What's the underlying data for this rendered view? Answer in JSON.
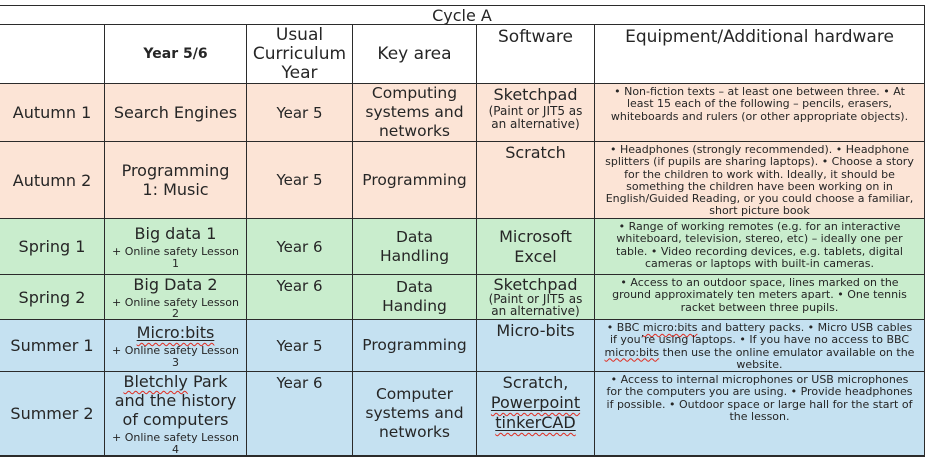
{
  "table": {
    "title": "Cycle A",
    "headers": {
      "term": "",
      "topic": "Year 5/6",
      "usual_year": [
        "Usual",
        "Curriculum",
        "Year"
      ],
      "key_area": "Key area",
      "software": "Software",
      "equipment": "Equipment/Additional hardware"
    },
    "rows": [
      {
        "term": "Autumn 1",
        "topic": [
          {
            "t": "Search Engines"
          }
        ],
        "year": "Year 5",
        "key_area": [
          "Computing",
          "systems and",
          "networks"
        ],
        "software": [
          {
            "t": "Sketchpad"
          }
        ],
        "software_sub": [
          "(Paint or JIT5 as",
          "an alternative)"
        ],
        "equipment": [
          {
            "t": "• Non-fiction texts – at least one between three. • At\nleast 15 each of the following – pencils, erasers,\nwhiteboards and rulers (or other appropriate objects)."
          }
        ]
      },
      {
        "term": "Autumn 2",
        "topic": [
          {
            "t": "Programming\n1: Music"
          }
        ],
        "year": "Year 5",
        "key_area": [
          "Programming"
        ],
        "software": [
          {
            "t": "Scratch"
          }
        ],
        "software_sub": [],
        "equipment": [
          {
            "t": "• Headphones (strongly recommended). • Headphone\nsplitters (if pupils are sharing laptops). • Choose a story\nfor the children to work with. Ideally, it should be\nsomething the children have been working on in\nEnglish/Guided Reading, or you could choose a familiar,\nshort picture book"
          }
        ]
      },
      {
        "term": "Spring 1",
        "topic": [
          {
            "t": "Big data 1"
          }
        ],
        "topic_sub": [
          "+ Online safety Lesson",
          "1"
        ],
        "year": "Year 6",
        "key_area": [
          "Data",
          "Handling"
        ],
        "software": [
          {
            "t": "Microsoft\nExcel"
          }
        ],
        "software_sub": [],
        "equipment": [
          {
            "t": "• Range of working remotes (e.g. for an interactive\nwhiteboard, television, stereo, etc) – ideally one per\ntable. • Video recording devices, e.g. tablets, digital\ncameras or laptops with built-in cameras."
          }
        ]
      },
      {
        "term": "Spring 2",
        "topic": [
          {
            "t": "Big Data 2"
          }
        ],
        "topic_sub": [
          "+ Online safety Lesson",
          "2"
        ],
        "year": "Year 6",
        "key_area": [
          "Data",
          "Handing"
        ],
        "software": [
          {
            "t": "Sketchpad"
          }
        ],
        "software_sub": [
          "(Paint or JIT5 as",
          "an alternative)"
        ],
        "equipment": [
          {
            "t": "• Access to an outdoor space, lines marked on the\nground approximately ten meters apart. • One tennis\nracket between three pupils."
          }
        ]
      },
      {
        "term": "Summer 1",
        "topic": [
          {
            "t": "Micro:bits",
            "c": "u sq"
          }
        ],
        "topic_sub": [
          "+ Online safety Lesson",
          "3"
        ],
        "year": "Year 5",
        "key_area": [
          "Programming"
        ],
        "software": [
          {
            "t": "Micro-bits"
          }
        ],
        "software_sub": [],
        "equipment": [
          {
            "t": "• BBC "
          },
          {
            "t": "micro:bits",
            "c": "sq"
          },
          {
            "t": " and battery packs. • Micro USB cables\nif you’re using laptops. • If you have no access to BBC\n"
          },
          {
            "t": "micro:bits",
            "c": "sq"
          },
          {
            "t": " then use the online emulator available on the\nwebsite."
          }
        ]
      },
      {
        "term": "Summer 2",
        "topic": [
          {
            "t": "Bletchly",
            "c": "sq"
          },
          {
            "t": " Park\nand the history\nof computers"
          }
        ],
        "topic_sub": [
          "+ Online safety Lesson",
          "4"
        ],
        "year": "Year 6",
        "key_area": [
          "Computer",
          "systems and",
          "networks"
        ],
        "software": [
          {
            "t": "Scratch,\n"
          },
          {
            "t": "Powerpoint",
            "c": "u sq"
          },
          {
            "t": "\n"
          },
          {
            "t": "tinkerCAD",
            "c": "u sq"
          }
        ],
        "software_sub": [],
        "equipment": [
          {
            "t": "• Access to internal microphones or USB microphones\nfor the computers you are using. • Provide headphones\nif possible. • Outdoor space or large hall for the start of\nthe lesson."
          }
        ]
      }
    ]
  }
}
